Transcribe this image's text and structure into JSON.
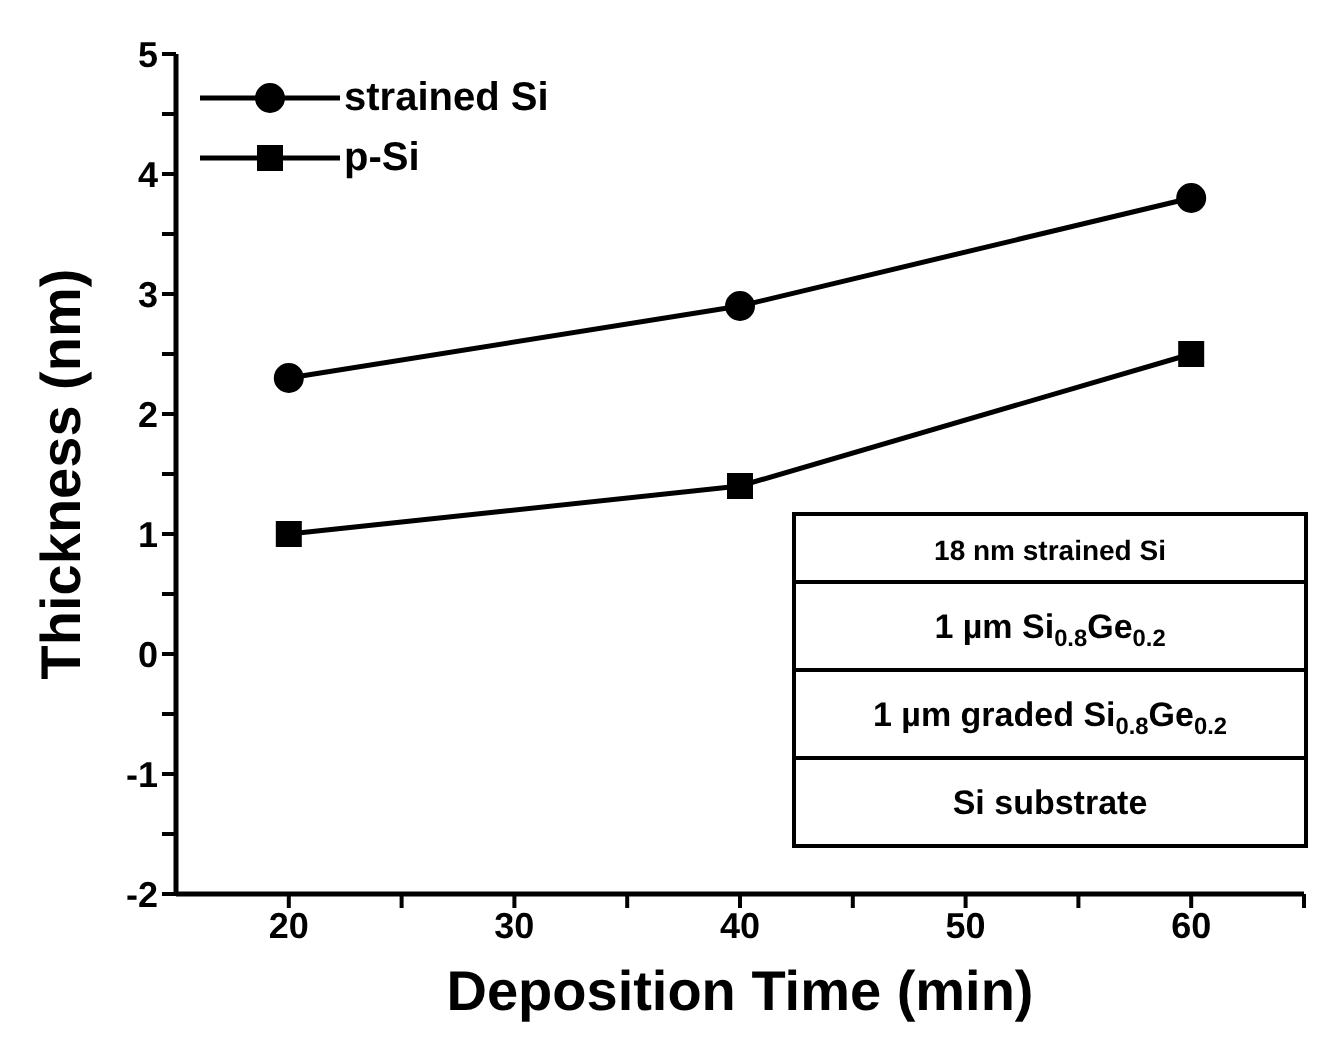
{
  "chart_data": {
    "type": "line",
    "xlabel": "Deposition Time (min)",
    "ylabel": "Thickness (nm)",
    "x": [
      20,
      40,
      60
    ],
    "series": [
      {
        "name": "strained Si",
        "color": "#000000",
        "marker": "circle",
        "values": [
          2.3,
          2.9,
          3.8
        ]
      },
      {
        "name": "p-Si",
        "color": "#000000",
        "marker": "square",
        "values": [
          1.0,
          1.4,
          2.5
        ]
      }
    ],
    "xlim": [
      15,
      65
    ],
    "xticks": [
      20,
      {
        "value": 25,
        "label": null
      },
      30,
      {
        "value": 35,
        "label": null
      },
      40,
      {
        "value": 45,
        "label": null
      },
      50,
      {
        "value": 55,
        "label": null
      },
      60,
      {
        "value": 65,
        "label": null
      }
    ],
    "ylim": [
      -2,
      5
    ],
    "yticks": [
      -2,
      {
        "value": -1.5,
        "label": null
      },
      -1,
      {
        "value": -0.5,
        "label": null
      },
      0,
      {
        "value": 0.5,
        "label": null
      },
      1,
      {
        "value": 1.5,
        "label": null
      },
      2,
      {
        "value": 2.5,
        "label": null
      },
      3,
      {
        "value": 3.5,
        "label": null
      },
      4,
      {
        "value": 4.5,
        "label": null
      },
      5
    ],
    "grid": false,
    "legend": "top left",
    "line_style": "solid",
    "annotations": [
      "18 nm strained Si",
      "1 µm Si$_{0.8}$Ge$_{0.2}$",
      "1 µm graded Si$_{0.8}$Ge$_{0.2}$",
      "Si substrate"
    ]
  }
}
